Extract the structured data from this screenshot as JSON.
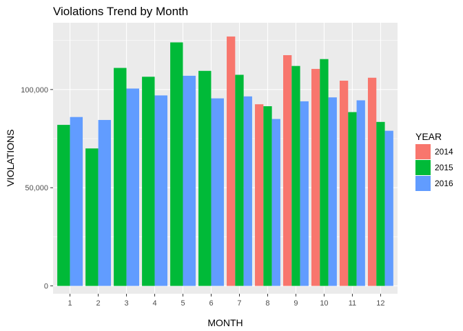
{
  "chart_data": {
    "type": "bar",
    "title": "Violations Trend by Month",
    "xlabel": "MONTH",
    "ylabel": "VIOLATIONS",
    "categories": [
      "1",
      "2",
      "3",
      "4",
      "5",
      "6",
      "7",
      "8",
      "9",
      "10",
      "11",
      "12"
    ],
    "series": [
      {
        "name": "2014",
        "color": "#F8766D",
        "values": [
          null,
          null,
          null,
          null,
          null,
          null,
          127000,
          92500,
          117500,
          110500,
          104500,
          106000
        ]
      },
      {
        "name": "2015",
        "color": "#00BA38",
        "values": [
          82000,
          70000,
          111000,
          106500,
          124000,
          109500,
          107500,
          91500,
          112000,
          115500,
          88500,
          83500
        ]
      },
      {
        "name": "2016",
        "color": "#619CFF",
        "values": [
          86000,
          84500,
          100500,
          97000,
          107000,
          95500,
          96500,
          85000,
          94000,
          96000,
          94500,
          79000
        ]
      }
    ],
    "yticks": [
      0,
      50000,
      100000
    ],
    "ytick_labels": [
      "0",
      "50,000",
      "100,000"
    ],
    "ylim": [
      -4000,
      134000
    ],
    "grid": true,
    "legend": {
      "title": "YEAR",
      "position": "right"
    },
    "panel_background": "#EBEBEB",
    "grid_color": "#FFFFFF"
  }
}
